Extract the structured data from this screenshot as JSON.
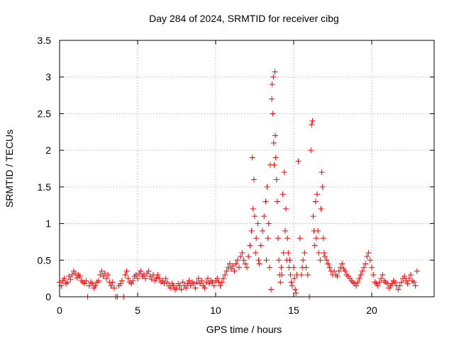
{
  "chart_data": {
    "type": "scatter",
    "title": "Day 284 of 2024, SRMTID for receiver cibg",
    "xlabel": "GPS time / hours",
    "ylabel": "SRMTID / TECUs",
    "xlim": [
      0,
      24
    ],
    "ylim": [
      0,
      3.5
    ],
    "xticks": [
      0,
      5,
      10,
      15,
      20
    ],
    "yticks": [
      0,
      0.5,
      1,
      1.5,
      2,
      2.5,
      3,
      3.5
    ],
    "xtick_labels": [
      "0",
      "5",
      "10",
      "15",
      "20"
    ],
    "ytick_labels": [
      "0",
      "0.5",
      "1",
      "1.5",
      "2",
      "2.5",
      "3",
      "3.5"
    ],
    "grid": true,
    "marker": "+",
    "color": "#ff0000",
    "series": [
      {
        "name": "SRMTID",
        "points": [
          [
            0.0,
            0.2
          ],
          [
            0.1,
            0.15
          ],
          [
            0.2,
            0.22
          ],
          [
            0.3,
            0.25
          ],
          [
            0.4,
            0.18
          ],
          [
            0.5,
            0.2
          ],
          [
            0.6,
            0.28
          ],
          [
            0.7,
            0.24
          ],
          [
            0.8,
            0.3
          ],
          [
            0.9,
            0.35
          ],
          [
            1.0,
            0.32
          ],
          [
            1.1,
            0.26
          ],
          [
            1.2,
            0.3
          ],
          [
            1.3,
            0.28
          ],
          [
            1.4,
            0.22
          ],
          [
            1.5,
            0.2
          ],
          [
            1.6,
            0.18
          ],
          [
            1.7,
            0.22
          ],
          [
            1.8,
            0.0
          ],
          [
            1.9,
            0.15
          ],
          [
            2.0,
            0.2
          ],
          [
            2.1,
            0.18
          ],
          [
            2.2,
            0.12
          ],
          [
            2.3,
            0.15
          ],
          [
            2.4,
            0.2
          ],
          [
            2.5,
            0.22
          ],
          [
            2.6,
            0.3
          ],
          [
            2.7,
            0.35
          ],
          [
            2.8,
            0.28
          ],
          [
            2.9,
            0.32
          ],
          [
            3.0,
            0.25
          ],
          [
            3.1,
            0.3
          ],
          [
            3.2,
            0.2
          ],
          [
            3.3,
            0.15
          ],
          [
            3.4,
            0.2
          ],
          [
            3.5,
            0.12
          ],
          [
            3.6,
            0.0
          ],
          [
            3.7,
            0.0
          ],
          [
            3.8,
            0.15
          ],
          [
            3.9,
            0.18
          ],
          [
            4.0,
            0.22
          ],
          [
            4.1,
            0.0
          ],
          [
            4.2,
            0.3
          ],
          [
            4.3,
            0.35
          ],
          [
            4.4,
            0.25
          ],
          [
            4.5,
            0.2
          ],
          [
            4.6,
            0.18
          ],
          [
            4.7,
            0.22
          ],
          [
            4.8,
            0.28
          ],
          [
            4.9,
            0.3
          ],
          [
            5.0,
            0.25
          ],
          [
            5.1,
            0.32
          ],
          [
            5.2,
            0.35
          ],
          [
            5.3,
            0.28
          ],
          [
            5.4,
            0.3
          ],
          [
            5.5,
            0.25
          ],
          [
            5.6,
            0.32
          ],
          [
            5.7,
            0.35
          ],
          [
            5.8,
            0.28
          ],
          [
            5.9,
            0.24
          ],
          [
            6.0,
            0.3
          ],
          [
            6.1,
            0.22
          ],
          [
            6.2,
            0.26
          ],
          [
            6.3,
            0.3
          ],
          [
            6.4,
            0.25
          ],
          [
            6.5,
            0.2
          ],
          [
            6.6,
            0.22
          ],
          [
            6.7,
            0.18
          ],
          [
            6.8,
            0.25
          ],
          [
            6.9,
            0.2
          ],
          [
            7.0,
            0.15
          ],
          [
            7.1,
            0.12
          ],
          [
            7.2,
            0.18
          ],
          [
            7.3,
            0.15
          ],
          [
            7.4,
            0.1
          ],
          [
            7.5,
            0.12
          ],
          [
            7.6,
            0.18
          ],
          [
            7.7,
            0.15
          ],
          [
            7.8,
            0.1
          ],
          [
            7.9,
            0.2
          ],
          [
            8.0,
            0.15
          ],
          [
            8.1,
            0.12
          ],
          [
            8.2,
            0.18
          ],
          [
            8.3,
            0.22
          ],
          [
            8.4,
            0.15
          ],
          [
            8.5,
            0.2
          ],
          [
            8.6,
            0.18
          ],
          [
            8.7,
            0.12
          ],
          [
            8.8,
            0.2
          ],
          [
            8.9,
            0.25
          ],
          [
            9.0,
            0.18
          ],
          [
            9.1,
            0.22
          ],
          [
            9.2,
            0.15
          ],
          [
            9.3,
            0.12
          ],
          [
            9.4,
            0.2
          ],
          [
            9.5,
            0.25
          ],
          [
            9.6,
            0.18
          ],
          [
            9.7,
            0.22
          ],
          [
            9.8,
            0.2
          ],
          [
            9.9,
            0.15
          ],
          [
            10.0,
            0.22
          ],
          [
            10.1,
            0.25
          ],
          [
            10.2,
            0.2
          ],
          [
            10.3,
            0.15
          ],
          [
            10.4,
            0.2
          ],
          [
            10.5,
            0.25
          ],
          [
            10.6,
            0.3
          ],
          [
            10.7,
            0.35
          ],
          [
            10.8,
            0.4
          ],
          [
            10.9,
            0.45
          ],
          [
            11.0,
            0.38
          ],
          [
            11.1,
            0.42
          ],
          [
            11.2,
            0.35
          ],
          [
            11.3,
            0.45
          ],
          [
            11.4,
            0.5
          ],
          [
            11.5,
            0.4
          ],
          [
            11.6,
            0.55
          ],
          [
            11.7,
            0.6
          ],
          [
            11.8,
            0.5
          ],
          [
            11.9,
            0.45
          ],
          [
            12.0,
            0.4
          ],
          [
            12.1,
            0.55
          ],
          [
            12.2,
            0.7
          ],
          [
            12.3,
            0.9
          ],
          [
            12.35,
            1.9
          ],
          [
            12.4,
            1.2
          ],
          [
            12.45,
            1.6
          ],
          [
            12.5,
            1.1
          ],
          [
            12.55,
            0.6
          ],
          [
            12.6,
            0.8
          ],
          [
            12.7,
            1.0
          ],
          [
            12.75,
            0.5
          ],
          [
            12.8,
            0.45
          ],
          [
            12.9,
            0.7
          ],
          [
            13.0,
            0.9
          ],
          [
            13.1,
            1.1
          ],
          [
            13.2,
            1.3
          ],
          [
            13.25,
            0.5
          ],
          [
            13.3,
            1.5
          ],
          [
            13.35,
            0.8
          ],
          [
            13.4,
            1.0
          ],
          [
            13.45,
            0.4
          ],
          [
            13.5,
            1.8
          ],
          [
            13.55,
            0.1
          ],
          [
            13.6,
            2.7
          ],
          [
            13.62,
            2.9
          ],
          [
            13.65,
            2.5
          ],
          [
            13.7,
            3.0
          ],
          [
            13.72,
            2.1
          ],
          [
            13.75,
            1.8
          ],
          [
            13.8,
            3.07
          ],
          [
            13.82,
            2.2
          ],
          [
            13.85,
            1.9
          ],
          [
            13.9,
            1.6
          ],
          [
            13.95,
            1.3
          ],
          [
            14.0,
            0.8
          ],
          [
            14.05,
            0.5
          ],
          [
            14.1,
            0.3
          ],
          [
            14.15,
            0.2
          ],
          [
            14.2,
            0.4
          ],
          [
            14.25,
            0.3
          ],
          [
            14.3,
            1.4
          ],
          [
            14.35,
            0.6
          ],
          [
            14.4,
            1.7
          ],
          [
            14.45,
            0.9
          ],
          [
            14.5,
            1.2
          ],
          [
            14.55,
            0.5
          ],
          [
            14.6,
            0.8
          ],
          [
            14.65,
            0.6
          ],
          [
            14.7,
            0.4
          ],
          [
            14.75,
            0.5
          ],
          [
            14.8,
            0.3
          ],
          [
            14.85,
            0.2
          ],
          [
            14.9,
            0.15
          ],
          [
            15.0,
            0.4
          ],
          [
            15.05,
            0.25
          ],
          [
            15.1,
            0.1
          ],
          [
            15.15,
            0.05
          ],
          [
            15.2,
            0.3
          ],
          [
            15.3,
            1.85
          ],
          [
            15.4,
            0.8
          ],
          [
            15.5,
            0.3
          ],
          [
            15.55,
            0.4
          ],
          [
            15.6,
            0.5
          ],
          [
            15.7,
            0.6
          ],
          [
            15.8,
            0.4
          ],
          [
            15.9,
            0.3
          ],
          [
            16.0,
            0.0
          ],
          [
            16.1,
            2.0
          ],
          [
            16.15,
            2.35
          ],
          [
            16.2,
            2.4
          ],
          [
            16.25,
            1.1
          ],
          [
            16.3,
            0.9
          ],
          [
            16.35,
            0.7
          ],
          [
            16.4,
            1.3
          ],
          [
            16.45,
            0.8
          ],
          [
            16.5,
            1.4
          ],
          [
            16.55,
            0.9
          ],
          [
            16.6,
            0.6
          ],
          [
            16.7,
            0.5
          ],
          [
            16.75,
            1.2
          ],
          [
            16.8,
            1.7
          ],
          [
            16.85,
            1.5
          ],
          [
            16.9,
            0.8
          ],
          [
            16.95,
            0.6
          ],
          [
            17.0,
            0.55
          ],
          [
            17.1,
            0.5
          ],
          [
            17.2,
            0.45
          ],
          [
            17.3,
            0.4
          ],
          [
            17.4,
            0.35
          ],
          [
            17.5,
            0.3
          ],
          [
            17.6,
            0.35
          ],
          [
            17.7,
            0.3
          ],
          [
            17.8,
            0.28
          ],
          [
            17.9,
            0.35
          ],
          [
            18.0,
            0.4
          ],
          [
            18.1,
            0.45
          ],
          [
            18.2,
            0.38
          ],
          [
            18.3,
            0.35
          ],
          [
            18.4,
            0.3
          ],
          [
            18.5,
            0.28
          ],
          [
            18.6,
            0.25
          ],
          [
            18.7,
            0.22
          ],
          [
            18.8,
            0.2
          ],
          [
            18.9,
            0.18
          ],
          [
            19.0,
            0.15
          ],
          [
            19.1,
            0.2
          ],
          [
            19.2,
            0.25
          ],
          [
            19.3,
            0.3
          ],
          [
            19.4,
            0.35
          ],
          [
            19.5,
            0.4
          ],
          [
            19.6,
            0.45
          ],
          [
            19.7,
            0.55
          ],
          [
            19.8,
            0.6
          ],
          [
            19.9,
            0.5
          ],
          [
            20.0,
            0.4
          ],
          [
            20.1,
            0.3
          ],
          [
            20.2,
            0.2
          ],
          [
            20.3,
            0.18
          ],
          [
            20.4,
            0.15
          ],
          [
            20.5,
            0.2
          ],
          [
            20.6,
            0.25
          ],
          [
            20.7,
            0.3
          ],
          [
            20.8,
            0.22
          ],
          [
            20.9,
            0.2
          ],
          [
            21.0,
            0.18
          ],
          [
            21.1,
            0.12
          ],
          [
            21.2,
            0.15
          ],
          [
            21.3,
            0.18
          ],
          [
            21.4,
            0.22
          ],
          [
            21.5,
            0.2
          ],
          [
            21.6,
            0.15
          ],
          [
            21.7,
            0.1
          ],
          [
            21.8,
            0.15
          ],
          [
            21.9,
            0.2
          ],
          [
            22.0,
            0.25
          ],
          [
            22.1,
            0.28
          ],
          [
            22.2,
            0.22
          ],
          [
            22.3,
            0.18
          ],
          [
            22.4,
            0.25
          ],
          [
            22.5,
            0.3
          ],
          [
            22.6,
            0.22
          ],
          [
            22.7,
            0.2
          ],
          [
            22.8,
            0.15
          ],
          [
            22.9,
            0.35
          ]
        ]
      }
    ]
  }
}
